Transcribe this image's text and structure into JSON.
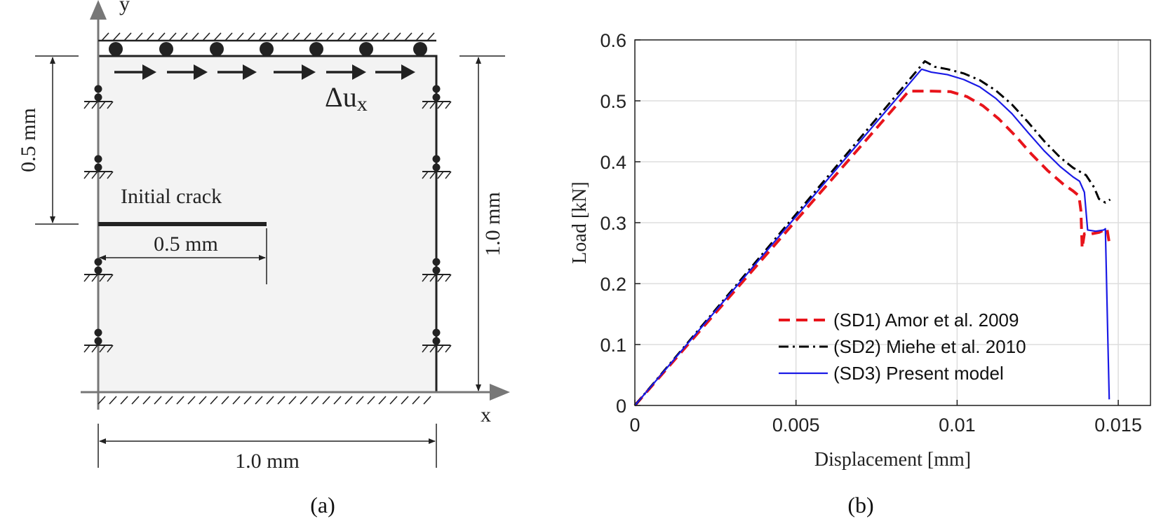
{
  "panel_a": {
    "caption": "(a)",
    "axis_x": "x",
    "axis_y": "y",
    "load_label_base": "Δu",
    "load_label_sub": "x",
    "crack_label": "Initial crack",
    "dim_crack_length": "0.5 mm",
    "dim_crack_height": "0.5 mm",
    "dim_width": "1.0 mm",
    "dim_height": "1.0 mm"
  },
  "panel_b": {
    "caption": "(b)"
  },
  "colors": {
    "sd1": "#e8141b",
    "sd2": "#000000",
    "sd3": "#1a1ae6",
    "plate_fill": "#f3f3f3"
  },
  "chart_data": {
    "type": "line",
    "xlabel": "Displacement [mm]",
    "ylabel": "Load [kN]",
    "xlim": [
      0,
      0.016
    ],
    "ylim": [
      0,
      0.6
    ],
    "xticks": [
      0,
      0.005,
      0.01,
      0.015
    ],
    "xtick_labels": [
      "0",
      "0.005",
      "0.01",
      "0.015"
    ],
    "yticks": [
      0,
      0.1,
      0.2,
      0.3,
      0.4,
      0.5,
      0.6
    ],
    "ytick_labels": [
      "0",
      "0.1",
      "0.2",
      "0.3",
      "0.4",
      "0.5",
      "0.6"
    ],
    "grid": true,
    "legend_position": "bottom-center",
    "series": [
      {
        "name": "(SD1) Amor et al. 2009",
        "style": "dashed",
        "points": [
          [
            0,
            0
          ],
          [
            0.0085,
            0.516
          ],
          [
            0.0092,
            0.516
          ],
          [
            0.0098,
            0.515
          ],
          [
            0.0103,
            0.507
          ],
          [
            0.0108,
            0.492
          ],
          [
            0.0113,
            0.47
          ],
          [
            0.0118,
            0.443
          ],
          [
            0.0123,
            0.413
          ],
          [
            0.0128,
            0.386
          ],
          [
            0.0133,
            0.363
          ],
          [
            0.0136,
            0.352
          ],
          [
            0.01378,
            0.344
          ],
          [
            0.01384,
            0.32
          ],
          [
            0.01388,
            0.258
          ],
          [
            0.01395,
            0.282
          ],
          [
            0.0141,
            0.281
          ],
          [
            0.0144,
            0.284
          ],
          [
            0.01465,
            0.29
          ],
          [
            0.01472,
            0.267
          ]
        ]
      },
      {
        "name": "(SD2) Miehe et al. 2010",
        "style": "dashdot",
        "points": [
          [
            0,
            0
          ],
          [
            0.009,
            0.565
          ],
          [
            0.0093,
            0.556
          ],
          [
            0.0097,
            0.552
          ],
          [
            0.0102,
            0.545
          ],
          [
            0.0107,
            0.534
          ],
          [
            0.0112,
            0.517
          ],
          [
            0.0117,
            0.494
          ],
          [
            0.0122,
            0.465
          ],
          [
            0.0127,
            0.434
          ],
          [
            0.0132,
            0.407
          ],
          [
            0.0136,
            0.39
          ],
          [
            0.014,
            0.378
          ],
          [
            0.01425,
            0.358
          ],
          [
            0.0144,
            0.339
          ],
          [
            0.0146,
            0.333
          ],
          [
            0.01475,
            0.338
          ]
        ]
      },
      {
        "name": "(SD3) Present model",
        "style": "solid",
        "points": [
          [
            0,
            0
          ],
          [
            0.0089,
            0.552
          ],
          [
            0.0092,
            0.547
          ],
          [
            0.0097,
            0.543
          ],
          [
            0.0102,
            0.535
          ],
          [
            0.0107,
            0.523
          ],
          [
            0.0112,
            0.504
          ],
          [
            0.0117,
            0.479
          ],
          [
            0.0122,
            0.448
          ],
          [
            0.0127,
            0.418
          ],
          [
            0.0132,
            0.392
          ],
          [
            0.0136,
            0.375
          ],
          [
            0.0138,
            0.368
          ],
          [
            0.01395,
            0.35
          ],
          [
            0.01405,
            0.288
          ],
          [
            0.0143,
            0.286
          ],
          [
            0.01455,
            0.288
          ],
          [
            0.0146,
            0.29
          ],
          [
            0.01468,
            0.1
          ],
          [
            0.01472,
            0.01
          ]
        ]
      }
    ]
  }
}
